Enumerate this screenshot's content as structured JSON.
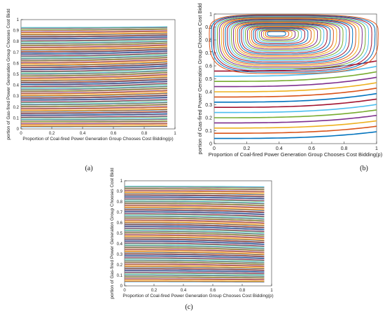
{
  "chart_data": [
    {
      "panel_label": "(a)",
      "type": "line",
      "title": "",
      "xlabel": "Proportion of Coal-fired Power Generation Group Chooses Cost Bidding(p)",
      "ylabel": "portion of Gas-fired Power Generation Group Chooses Cost Bidd",
      "xlim": [
        0,
        1
      ],
      "ylim": [
        0,
        1
      ],
      "xticks": [
        "0",
        "0.2",
        "0.4",
        "0.6",
        "0.8",
        "1"
      ],
      "yticks": [
        "0",
        "0.1",
        "0.2",
        "0.3",
        "0.4",
        "0.5",
        "0.6",
        "0.7",
        "0.8",
        "0.9",
        "1"
      ],
      "grid": false,
      "series_description_values": {
        "x_start": 0,
        "x_end": 0.95,
        "initial_y": [
          0.02,
          0.04,
          0.06,
          0.08,
          0.1,
          0.12,
          0.14,
          0.16,
          0.18,
          0.2,
          0.22,
          0.24,
          0.26,
          0.28,
          0.3,
          0.32,
          0.34,
          0.36,
          0.38,
          0.4,
          0.42,
          0.44,
          0.46,
          0.48,
          0.5,
          0.52,
          0.54,
          0.56,
          0.58,
          0.6,
          0.62,
          0.64,
          0.66,
          0.68,
          0.7,
          0.72,
          0.74,
          0.76,
          0.78,
          0.8,
          0.82,
          0.84,
          0.86,
          0.88,
          0.9,
          0.92
        ],
        "trend": "rising"
      }
    },
    {
      "panel_label": "(b)",
      "type": "line",
      "title": "",
      "xlabel": "Proportion of Coal-fired Power Generation Group Chooses Cost Bidding(p)",
      "ylabel": "portion of Gas-fired Power Generation Group Chooses Cost Bidd",
      "xlim": [
        0,
        1
      ],
      "ylim": [
        0,
        1
      ],
      "xticks": [
        "0",
        "0.2",
        "0.4",
        "0.6",
        "0.8",
        "1"
      ],
      "yticks": [
        "0",
        "0.1",
        "0.2",
        "0.3",
        "0.4",
        "0.5",
        "0.6",
        "0.7",
        "0.8",
        "0.9",
        "1"
      ],
      "grid": false,
      "center": [
        0.38,
        0.85
      ],
      "closed_orbits": 30,
      "open_trajectories_initial_y": [
        0.04,
        0.08,
        0.12,
        0.16,
        0.2,
        0.24,
        0.28,
        0.32,
        0.36,
        0.4,
        0.44,
        0.48,
        0.52,
        0.56
      ]
    },
    {
      "panel_label": "(c)",
      "type": "line",
      "title": "",
      "xlabel": "Proportion of Coal-fired Power Generation Group Chooses Cost Bidding(p)",
      "ylabel": "portion of Gas-fired Power Generation Group Chooses Cost Bidd",
      "xlim": [
        0,
        1
      ],
      "ylim": [
        0,
        1
      ],
      "xticks": [
        "0",
        "0.2",
        "0.4",
        "0.6",
        "0.8",
        "1"
      ],
      "yticks": [
        "0",
        "0.1",
        "0.2",
        "0.3",
        "0.4",
        "0.5",
        "0.6",
        "0.7",
        "0.8",
        "0.9",
        "1"
      ],
      "grid": false,
      "series_description_values": {
        "x_start": 0,
        "x_end": 0.95,
        "initial_y": [
          0.04,
          0.06,
          0.08,
          0.1,
          0.12,
          0.14,
          0.16,
          0.18,
          0.2,
          0.22,
          0.24,
          0.26,
          0.28,
          0.3,
          0.32,
          0.34,
          0.36,
          0.38,
          0.4,
          0.42,
          0.44,
          0.46,
          0.48,
          0.5,
          0.52,
          0.54,
          0.56,
          0.58,
          0.6,
          0.62,
          0.64,
          0.66,
          0.68,
          0.7,
          0.72,
          0.74,
          0.76,
          0.78,
          0.8,
          0.82,
          0.84,
          0.86,
          0.88,
          0.9,
          0.92,
          0.94
        ],
        "trend": "falling"
      }
    }
  ],
  "colors": [
    "#0072BD",
    "#D95319",
    "#EDB120",
    "#7E2F8E",
    "#77AC30",
    "#4DBEEE",
    "#A2142F"
  ]
}
